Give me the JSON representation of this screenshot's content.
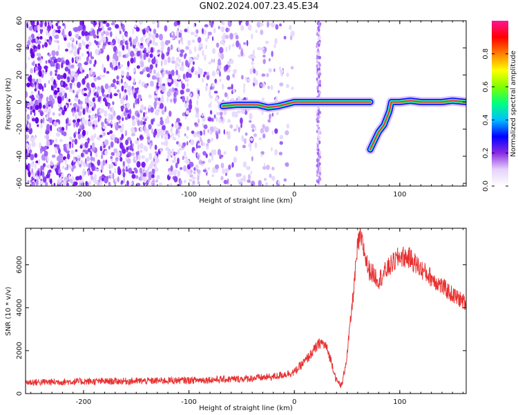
{
  "title": "GN02.2024.007.23.45.E34",
  "chart_data": [
    {
      "type": "heatmap",
      "xlabel": "Height of straight line (km)",
      "ylabel": "Frequency (Hz)",
      "xlim": [
        -255,
        163
      ],
      "ylim": [
        -62,
        60
      ],
      "xticks": [
        -200,
        -100,
        0,
        100
      ],
      "yticks": [
        -60,
        -40,
        -20,
        0,
        20,
        40,
        60
      ],
      "colorbar": {
        "label": "Normalized spectral amplitude",
        "range": [
          0,
          1
        ],
        "ticks": [
          0.0,
          0.2,
          0.4,
          0.6,
          0.8
        ],
        "colors": [
          "#ffffff",
          "#e6d2fa",
          "#8a2be2",
          "#0000ff",
          "#00bfff",
          "#00ff80",
          "#7fff00",
          "#ffff00",
          "#ff8000",
          "#ff0000",
          "#ff1493"
        ]
      },
      "noise_region_x": [
        -255,
        -15
      ],
      "vertical_noise_band_x": 23,
      "trace": {
        "x": [
          -68,
          -55,
          -45,
          -35,
          -25,
          -15,
          -5,
          0,
          10,
          20,
          25,
          40,
          60,
          72,
          72,
          75,
          80,
          85,
          90,
          92,
          100,
          110,
          120,
          130,
          140,
          150,
          163
        ],
        "y": [
          -3,
          -2,
          -2,
          -2,
          -4,
          -3,
          -1,
          0,
          0,
          0,
          0,
          0,
          0,
          0,
          -35,
          -30,
          -22,
          -17,
          -7,
          0,
          0,
          1,
          0,
          0,
          0,
          1,
          0
        ]
      },
      "grid": false
    },
    {
      "type": "line",
      "color": "#e83030",
      "xlabel": "Height of straight line (km)",
      "ylabel": "SNR (10 * v/v)",
      "xlim": [
        -255,
        163
      ],
      "ylim": [
        0,
        7700
      ],
      "xticks": [
        -200,
        -100,
        0,
        100
      ],
      "yticks": [
        0,
        2000,
        4000,
        6000
      ],
      "series": [
        {
          "x": [
            -255,
            -200,
            -150,
            -100,
            -50,
            -20,
            0,
            10,
            20,
            25,
            30,
            35,
            40,
            45,
            50,
            55,
            60,
            62,
            65,
            70,
            80,
            90,
            100,
            110,
            120,
            130,
            140,
            150,
            163
          ],
          "y": [
            520,
            560,
            580,
            620,
            680,
            780,
            1000,
            1500,
            2100,
            2400,
            2200,
            1500,
            600,
            350,
            1800,
            4200,
            6800,
            7300,
            6900,
            5800,
            5300,
            5900,
            6400,
            6300,
            5800,
            5400,
            5000,
            4600,
            4200
          ]
        }
      ],
      "grid": false
    }
  ]
}
